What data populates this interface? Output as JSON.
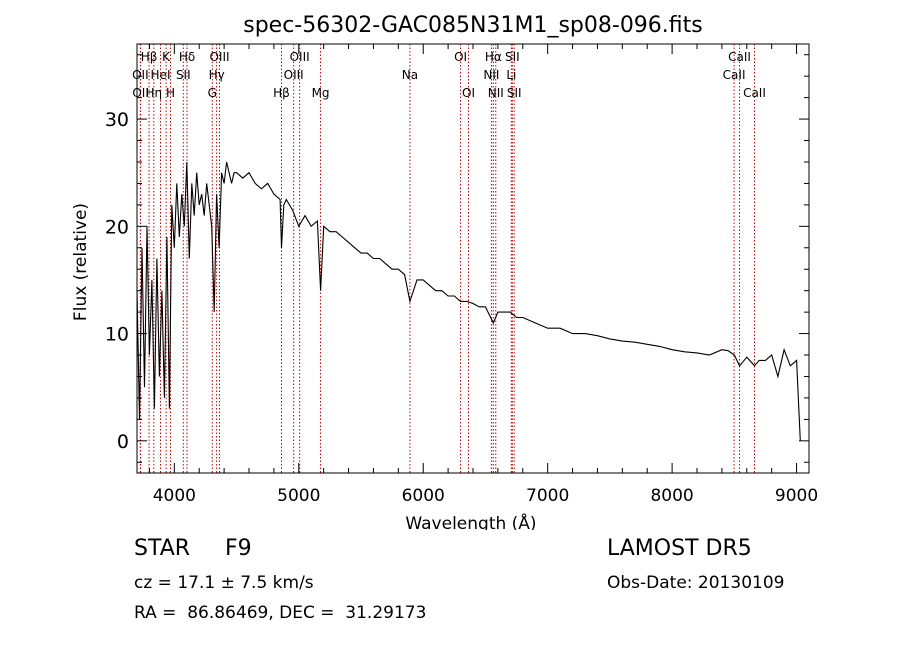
{
  "chart_data": {
    "type": "line",
    "title": "spec-56302-GAC085N31M1_sp08-096.fits",
    "xlabel": "Wavelength (Å)",
    "ylabel": "Flux (relative)",
    "xlim": [
      3700,
      9100
    ],
    "ylim": [
      -3,
      37
    ],
    "xticks": [
      4000,
      5000,
      6000,
      7000,
      8000,
      9000
    ],
    "yticks": [
      0,
      10,
      20,
      30
    ],
    "grid": false,
    "legend": "none",
    "series": [
      {
        "x": [
          3700,
          3720,
          3740,
          3760,
          3780,
          3800,
          3820,
          3840,
          3860,
          3880,
          3900,
          3920,
          3940,
          3960,
          3980,
          4000,
          4020,
          4040,
          4060,
          4080,
          4100,
          4120,
          4140,
          4160,
          4180,
          4200,
          4220,
          4240,
          4260,
          4280,
          4300,
          4320,
          4340,
          4360,
          4380,
          4400,
          4420,
          4440,
          4460,
          4480,
          4500,
          4550,
          4600,
          4650,
          4700,
          4750,
          4800,
          4850,
          4861,
          4880,
          4900,
          4950,
          5000,
          5050,
          5100,
          5150,
          5175,
          5200,
          5250,
          5300,
          5350,
          5400,
          5450,
          5500,
          5550,
          5600,
          5650,
          5700,
          5750,
          5800,
          5850,
          5893,
          5950,
          6000,
          6050,
          6100,
          6150,
          6200,
          6250,
          6300,
          6350,
          6400,
          6450,
          6500,
          6563,
          6600,
          6650,
          6700,
          6750,
          6800,
          6900,
          7000,
          7100,
          7200,
          7300,
          7400,
          7500,
          7600,
          7700,
          7800,
          7900,
          8000,
          8100,
          8200,
          8300,
          8400,
          8450,
          8500,
          8542,
          8600,
          8662,
          8700,
          8750,
          8800,
          8850,
          8900,
          8950,
          9000,
          9030
        ],
        "y": [
          14,
          2,
          18,
          5,
          20,
          8,
          15,
          3,
          17,
          6,
          14,
          4,
          19,
          3,
          22,
          18,
          24,
          19,
          23,
          20,
          26,
          17,
          24,
          21,
          25,
          22,
          23,
          21,
          24,
          22,
          20,
          12,
          23,
          18,
          25,
          24,
          26,
          25,
          24,
          25,
          25,
          24.5,
          25,
          24,
          23.5,
          24,
          23,
          22.5,
          18,
          22,
          22.5,
          21.5,
          20,
          21,
          20,
          20.5,
          14,
          20,
          19.5,
          19.5,
          19,
          18.5,
          18,
          17.5,
          17.5,
          17,
          17,
          16.5,
          16,
          16,
          15.5,
          13,
          15,
          15,
          14.5,
          14,
          14,
          13.5,
          13.5,
          13,
          13,
          12.8,
          12.5,
          12.5,
          11,
          12,
          12,
          12,
          11.5,
          11.5,
          11,
          10.5,
          10.5,
          10,
          10,
          9.8,
          9.5,
          9.3,
          9.2,
          9,
          8.8,
          8.5,
          8.3,
          8.2,
          8,
          8.5,
          8.4,
          8,
          7,
          7.8,
          7,
          7.5,
          7.5,
          8,
          6,
          8.5,
          7,
          7.5,
          0
        ]
      }
    ],
    "lines": [
      {
        "label": "Hβ",
        "x": 3797,
        "row": 1
      },
      {
        "label": "OII",
        "x": 3727,
        "row": 2
      },
      {
        "label": "OII",
        "x": 3729,
        "row": 3
      },
      {
        "label": "Hη",
        "x": 3835,
        "row": 3
      },
      {
        "label": "K",
        "x": 3934,
        "row": 1
      },
      {
        "label": "HeI",
        "x": 3889,
        "row": 2
      },
      {
        "label": "H",
        "x": 3969,
        "row": 3
      },
      {
        "label": "Hδ",
        "x": 4102,
        "row": 1
      },
      {
        "label": "SII",
        "x": 4072,
        "row": 2
      },
      {
        "label": "OIII",
        "x": 4363,
        "row": 1
      },
      {
        "label": "Hγ",
        "x": 4340,
        "row": 2
      },
      {
        "label": "G",
        "x": 4305,
        "row": 3
      },
      {
        "label": "Hβ",
        "x": 4861,
        "row": 3
      },
      {
        "label": "OIII",
        "x": 4959,
        "row": 2
      },
      {
        "label": "OIII",
        "x": 5007,
        "row": 1
      },
      {
        "label": "Mg",
        "x": 5175,
        "row": 3
      },
      {
        "label": "Na",
        "x": 5893,
        "row": 2
      },
      {
        "label": "OI",
        "x": 6300,
        "row": 1
      },
      {
        "label": "OI",
        "x": 6364,
        "row": 3
      },
      {
        "label": "Hα",
        "x": 6563,
        "row": 1
      },
      {
        "label": "NII",
        "x": 6548,
        "row": 2
      },
      {
        "label": "NII",
        "x": 6583,
        "row": 3
      },
      {
        "label": "SII",
        "x": 6716,
        "row": 1
      },
      {
        "label": "Li",
        "x": 6708,
        "row": 2
      },
      {
        "label": "SII",
        "x": 6731,
        "row": 3
      },
      {
        "label": "CaII",
        "x": 8542,
        "row": 1
      },
      {
        "label": "CaII",
        "x": 8498,
        "row": 2
      },
      {
        "label": "CaII",
        "x": 8662,
        "row": 3
      }
    ]
  },
  "info": {
    "object_class": "STAR",
    "subclass": "F9",
    "survey": "LAMOST DR5",
    "cz": "cz = 17.1 ± 7.5 km/s",
    "obs_date": "Obs-Date: 20130109",
    "radec": "RA =  86.86469, DEC =  31.29173"
  },
  "colors": {
    "line_marker": "#c00000",
    "spectrum": "#000000"
  }
}
